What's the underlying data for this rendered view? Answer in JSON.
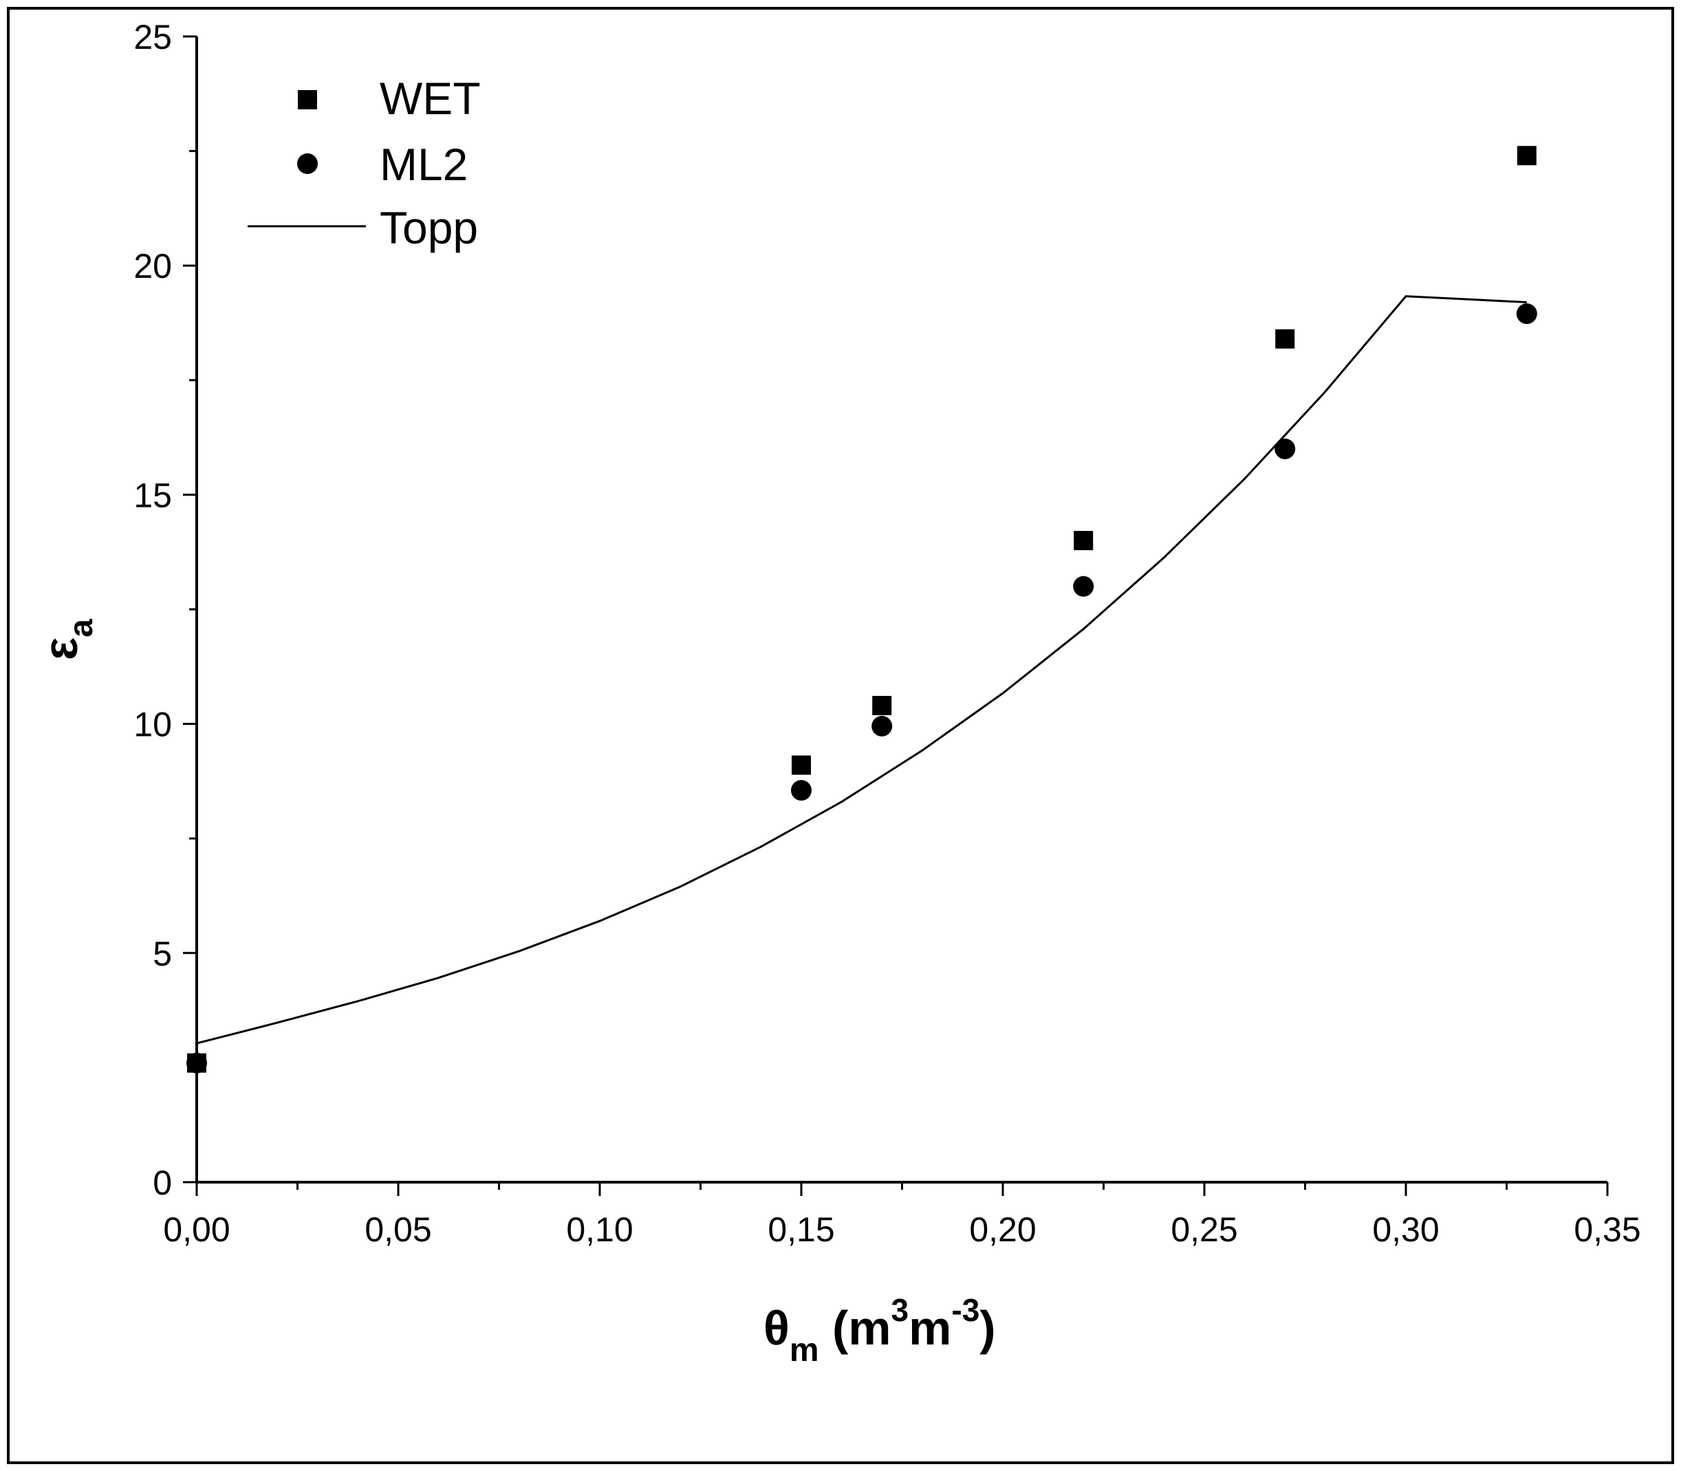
{
  "chart_data": {
    "type": "scatter",
    "title": "",
    "xlabel": {
      "symbol": "θ",
      "subscript": "m",
      "unit_open": " (m",
      "unit_sup1": "3",
      "unit_mid": "m",
      "unit_sup2": "-3",
      "unit_close": ")"
    },
    "ylabel": {
      "symbol": "ε",
      "subscript": "a"
    },
    "xlim": [
      0,
      0.35
    ],
    "ylim": [
      0,
      25
    ],
    "x_major_ticks": [
      0,
      0.05,
      0.1,
      0.15,
      0.2,
      0.25,
      0.3,
      0.35
    ],
    "x_tick_labels": [
      "0,00",
      "0,05",
      "0,10",
      "0,15",
      "0,20",
      "0,25",
      "0,30",
      "0,35"
    ],
    "y_major_ticks": [
      0,
      5,
      10,
      15,
      20,
      25
    ],
    "y_tick_labels": [
      "0",
      "5",
      "10",
      "15",
      "20",
      "25"
    ],
    "legend_position": "top-left",
    "series": [
      {
        "name": "WET",
        "marker": "square",
        "x": [
          0.0,
          0.15,
          0.17,
          0.22,
          0.27,
          0.33
        ],
        "y": [
          2.6,
          9.1,
          10.4,
          14.0,
          18.4,
          22.4
        ]
      },
      {
        "name": "ML2",
        "marker": "circle",
        "x": [
          0.0,
          0.15,
          0.17,
          0.22,
          0.27,
          0.33
        ],
        "y": [
          2.6,
          8.55,
          9.95,
          13.0,
          16.0,
          18.95
        ]
      },
      {
        "name": "Topp",
        "marker": "line",
        "x": [
          0.0,
          0.02,
          0.04,
          0.06,
          0.08,
          0.1,
          0.12,
          0.14,
          0.16,
          0.18,
          0.2,
          0.22,
          0.24,
          0.26,
          0.28,
          0.3,
          0.33
        ],
        "y": [
          3.03,
          3.48,
          3.95,
          4.46,
          5.04,
          5.7,
          6.45,
          7.32,
          8.3,
          9.42,
          10.67,
          12.07,
          13.63,
          15.35,
          17.25,
          19.33,
          19.2
        ]
      }
    ]
  }
}
